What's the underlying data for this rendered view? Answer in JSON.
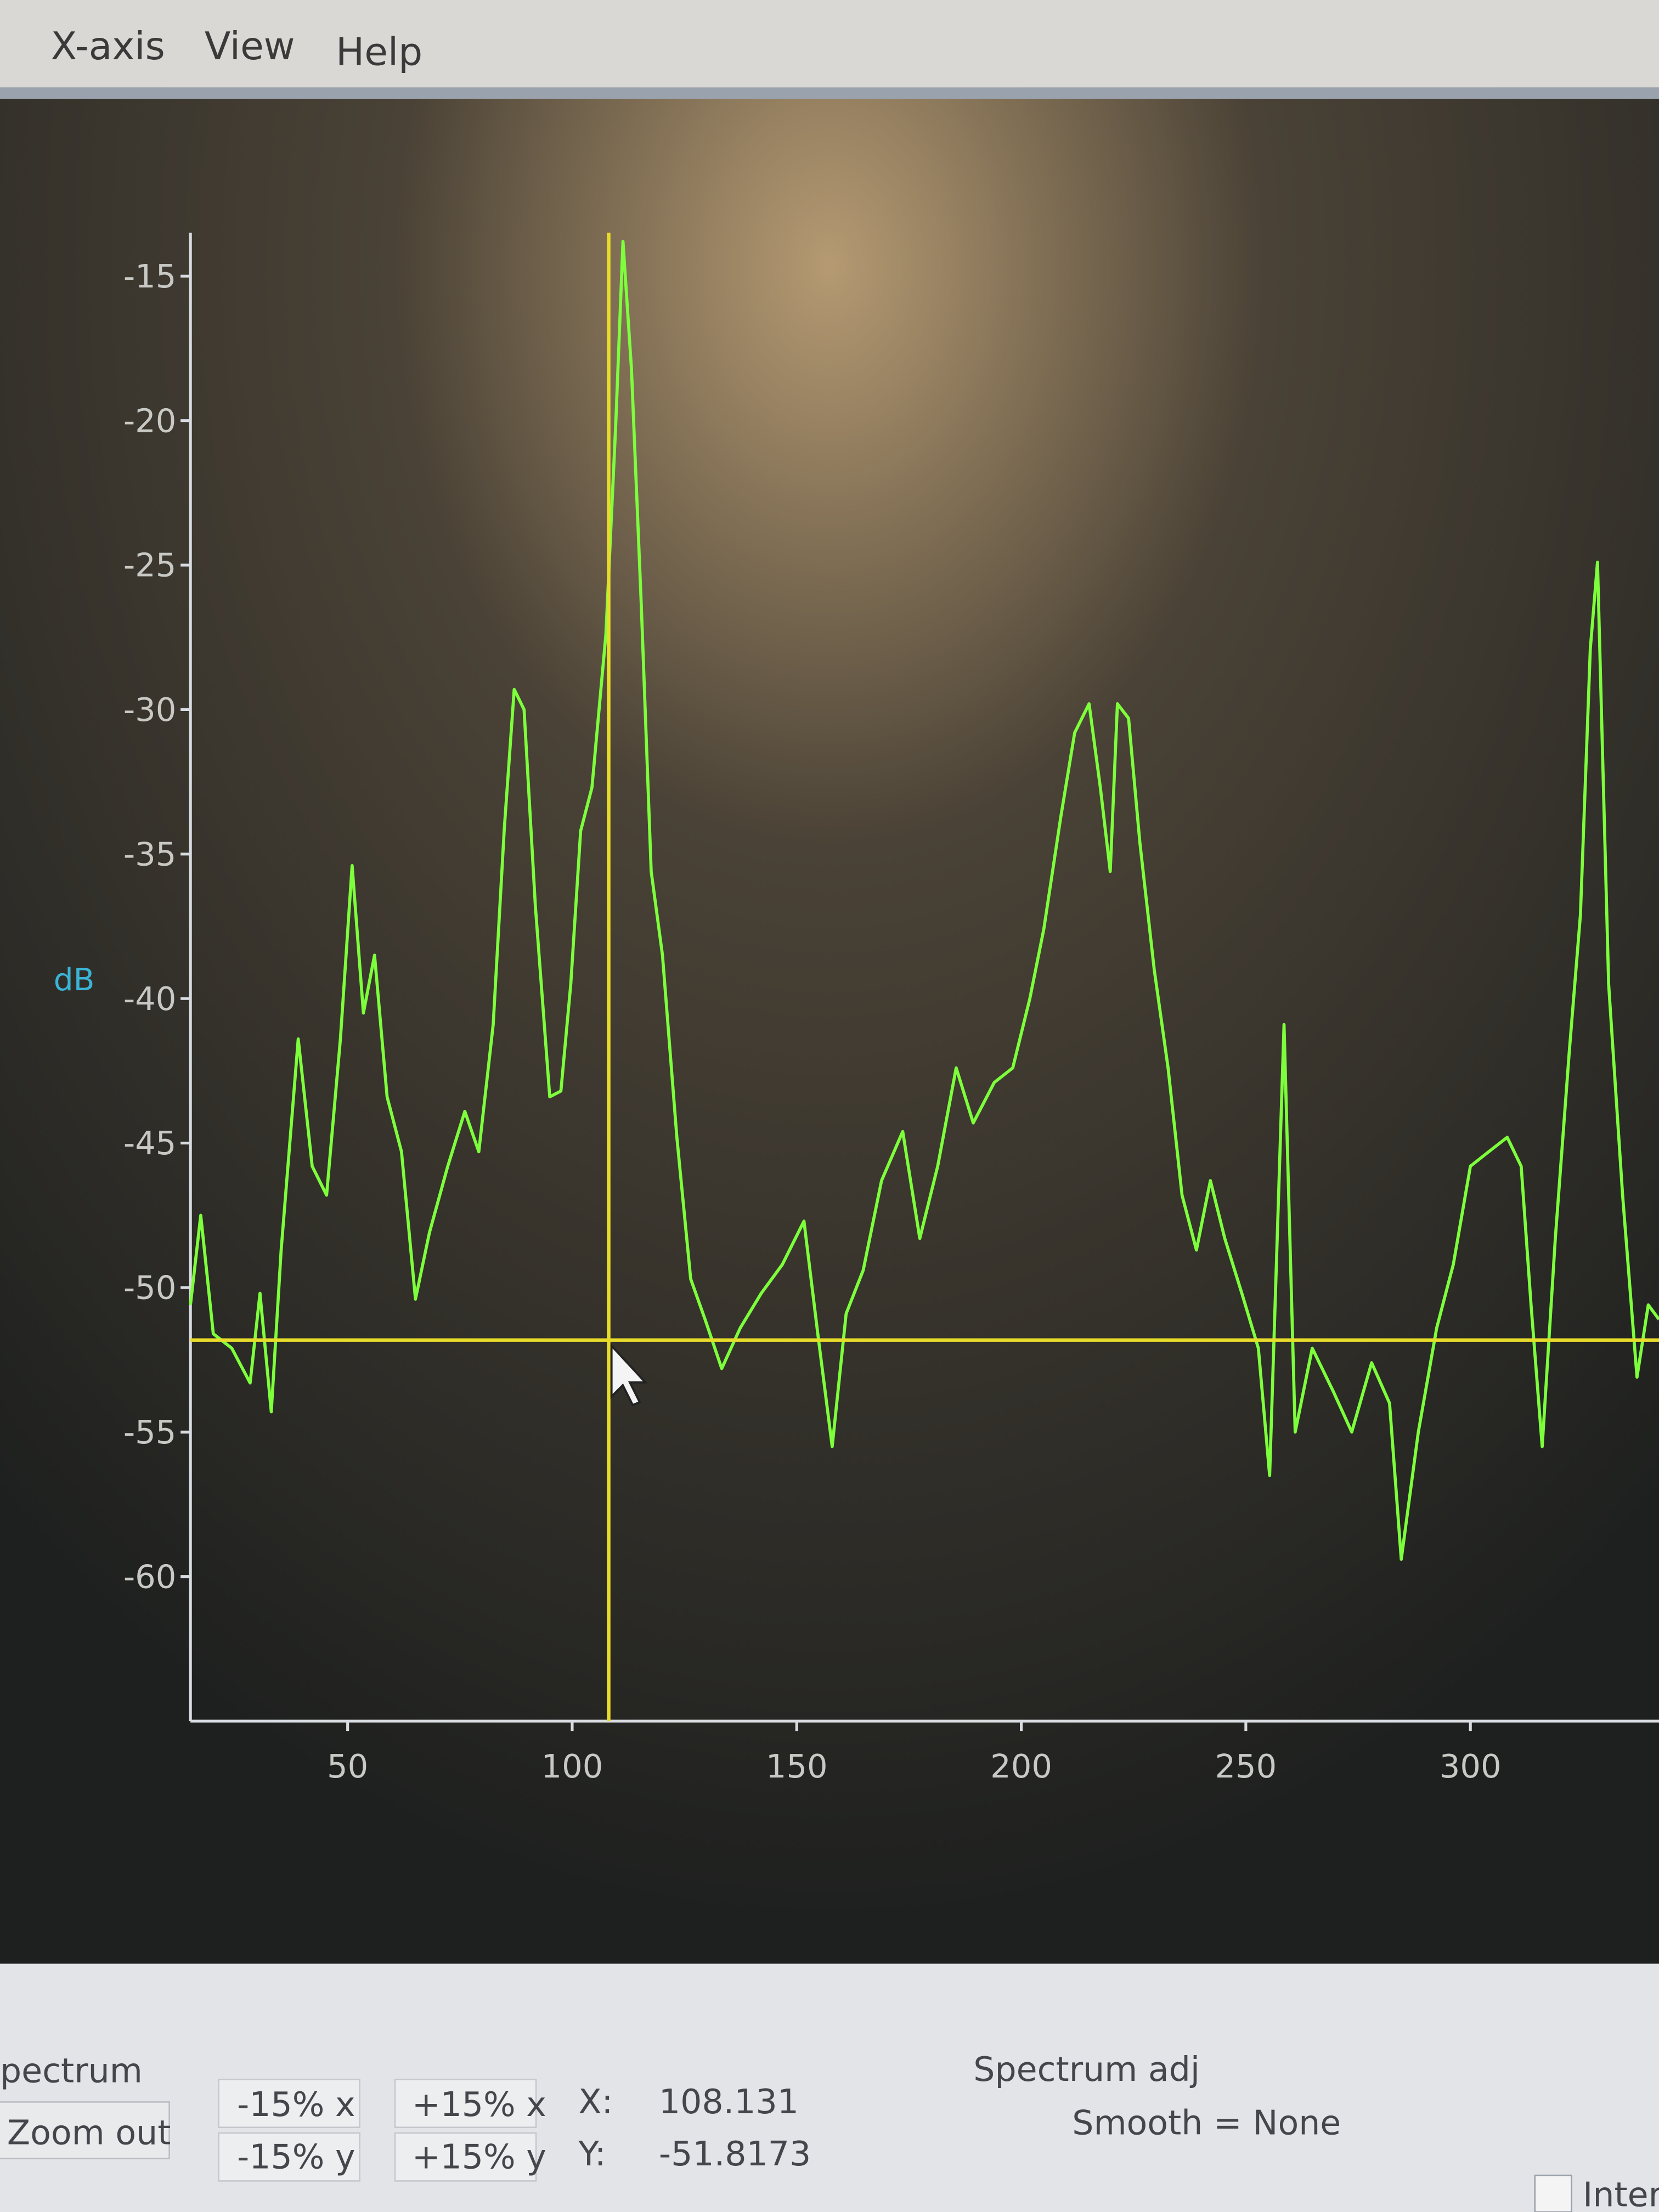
{
  "menu": [
    "X-axis",
    "View",
    "Help"
  ],
  "chart_data": {
    "type": "line",
    "y_label": "dB",
    "x": [
      15,
      17.3,
      20.1,
      24.2,
      28.3,
      30.5,
      33,
      35.2,
      39,
      42.1,
      45.3,
      48.4,
      51,
      53.5,
      56,
      58.8,
      62,
      65.1,
      68.2,
      72.3,
      76.1,
      79.2,
      82.4,
      84.9,
      87.1,
      89.3,
      91.8,
      95,
      97.5,
      99.7,
      101.9,
      104.4,
      107.5,
      109.7,
      111.3,
      113.2,
      115.4,
      117.6,
      120.1,
      123.3,
      126.4,
      129.6,
      133.3,
      137.4,
      142.1,
      146.8,
      151.6,
      154.7,
      157.9,
      161,
      164.8,
      168.9,
      173.6,
      177.4,
      181.4,
      185.5,
      189.3,
      194,
      198.1,
      201.9,
      205,
      208.8,
      211.9,
      215.1,
      217.6,
      219.8,
      221.4,
      223.9,
      226.4,
      229.6,
      232.7,
      235.8,
      239,
      242.1,
      245.3,
      249.1,
      252.8,
      255.3,
      258.5,
      261,
      264.8,
      269.5,
      273.6,
      278,
      282,
      284.6,
      288.4,
      292.5,
      296.2,
      300,
      304.1,
      308.2,
      311.3,
      313.5,
      316,
      318.9,
      322,
      324.5,
      326.7,
      328.3,
      330.8,
      333.9,
      337.1,
      339.6,
      342
    ],
    "values": [
      -50.6,
      -47.5,
      -51.6,
      -52.1,
      -53.3,
      -50.2,
      -54.3,
      -48.7,
      -41.4,
      -45.8,
      -46.8,
      -41.4,
      -35.4,
      -40.5,
      -38.5,
      -43.4,
      -45.3,
      -50.4,
      -48.1,
      -45.8,
      -43.9,
      -45.3,
      -40.9,
      -34.1,
      -29.3,
      -30,
      -36.8,
      -43.4,
      -43.2,
      -39.5,
      -34.2,
      -32.7,
      -27.4,
      -20.1,
      -13.8,
      -18.2,
      -26.4,
      -35.6,
      -38.5,
      -44.8,
      -49.7,
      -51.1,
      -52.8,
      -51.4,
      -50.2,
      -49.2,
      -47.7,
      -51.6,
      -55.5,
      -50.9,
      -49.4,
      -46.3,
      -44.6,
      -48.3,
      -45.8,
      -42.4,
      -44.3,
      -42.9,
      -42.4,
      -40,
      -37.6,
      -33.7,
      -30.8,
      -29.8,
      -32.7,
      -35.6,
      -29.8,
      -30.3,
      -34.6,
      -39,
      -42.4,
      -46.8,
      -48.7,
      -46.3,
      -48.3,
      -50.2,
      -52.1,
      -56.5,
      -40.9,
      -55,
      -52.1,
      -53.6,
      -55,
      -52.6,
      -54,
      -59.4,
      -55,
      -51.4,
      -49.2,
      -45.8,
      -45.3,
      -44.8,
      -45.8,
      -50.6,
      -55.5,
      -48.3,
      -41.9,
      -37.1,
      -27.9,
      -24.9,
      -39.5,
      -46.8,
      -53.1,
      -50.6,
      -51.1
    ],
    "color": "#7dff3c",
    "xlim": [
      15,
      342
    ],
    "ylim": [
      -65,
      -13.5
    ],
    "xticks": [
      50,
      100,
      150,
      200,
      250,
      300
    ],
    "yticks": [
      -15,
      -20,
      -25,
      -30,
      -35,
      -40,
      -45,
      -50,
      -55,
      -60
    ],
    "cursor": {
      "x": 108.131,
      "y": -51.8173,
      "color": "#e8dc2a"
    }
  },
  "panel": {
    "group": "pectrum",
    "zoom_out": "Zoom out",
    "buttons": [
      "-15% x",
      "+15% x",
      "-15% y",
      "+15% y"
    ],
    "x_label": "X:",
    "y_label": "Y:",
    "spectrum_adj": "Spectrum adj",
    "smooth": "Smooth = None",
    "interl": "Interl"
  }
}
